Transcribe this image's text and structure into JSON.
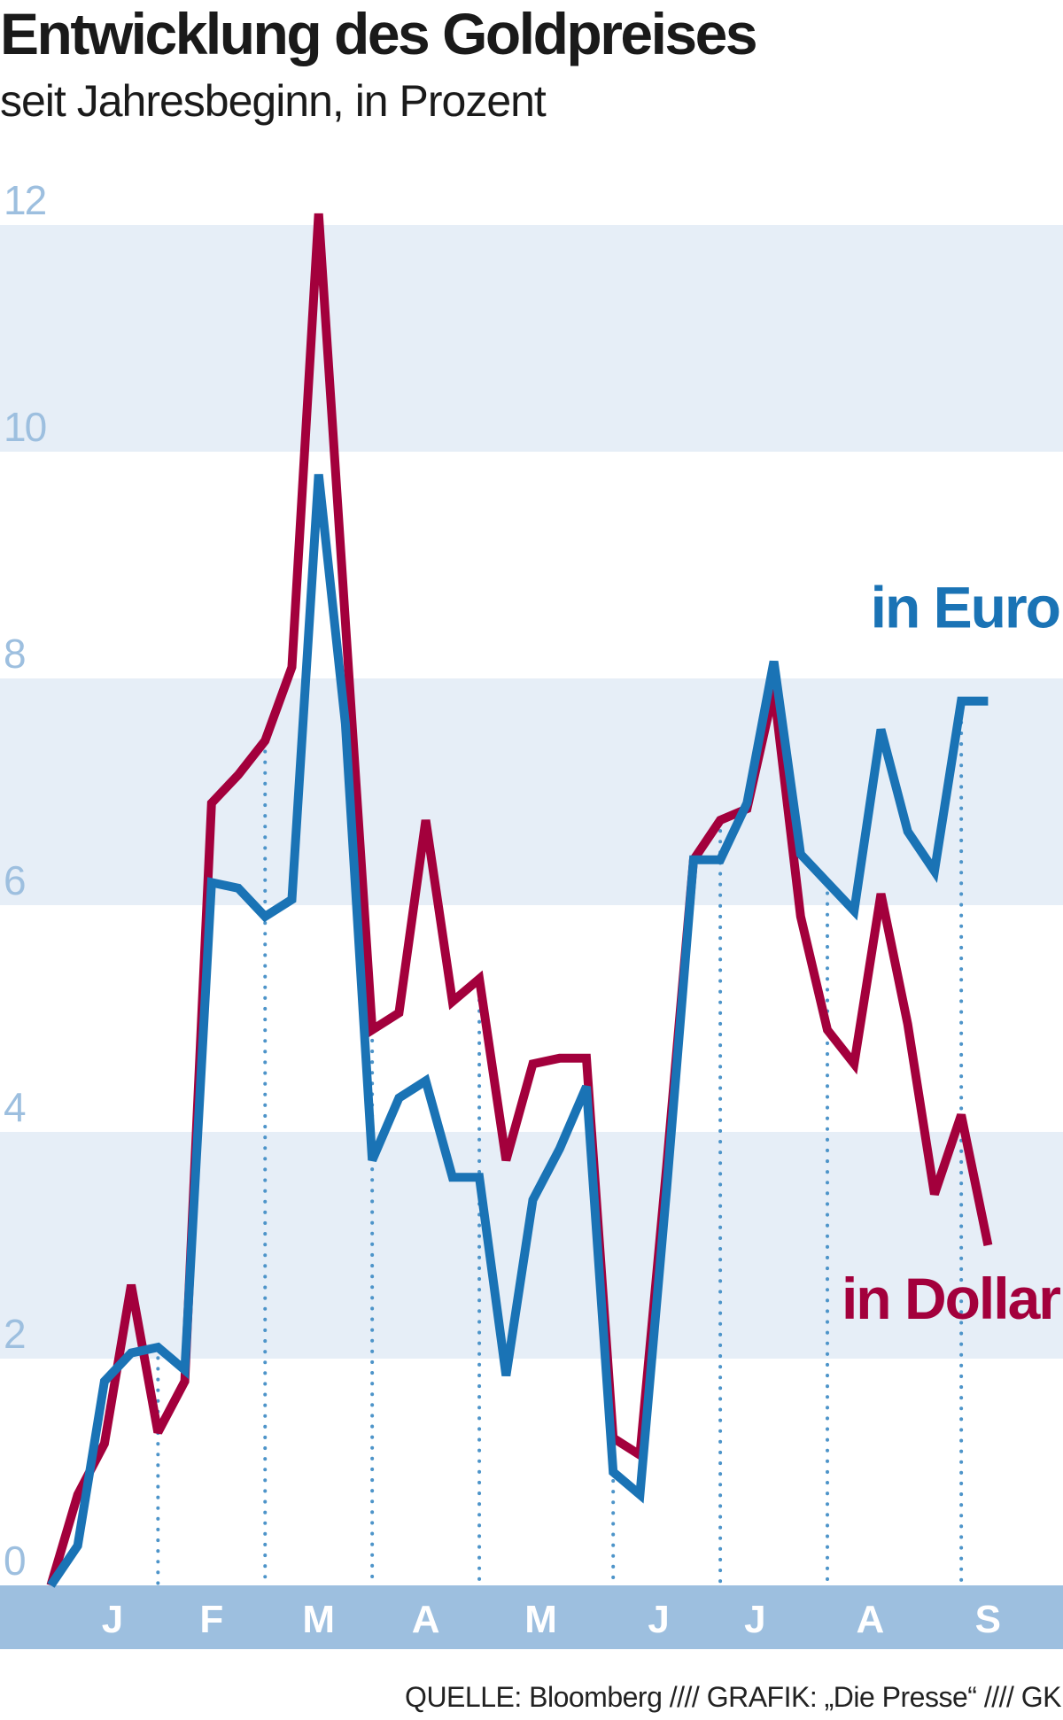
{
  "chart": {
    "title": "Entwicklung des Goldpreises",
    "subtitle": "seit Jahresbeginn, in Prozent",
    "source": "QUELLE:  Bloomberg  ////  GRAFIK: „Die Presse“  ////  GK"
  },
  "colors": {
    "euro": "#1a73b5",
    "dollar": "#a3003c",
    "band": "#e6eef7",
    "axis_bar": "#9dbfdf",
    "tick_text": "#9dbfdf",
    "month_text": "#ffffff",
    "grid_dots": "#4d94c9"
  },
  "chart_data": {
    "type": "line",
    "title": "Entwicklung des Goldpreises",
    "subtitle": "seit Jahresbeginn, in Prozent",
    "xlabel": "",
    "ylabel": "",
    "ylim": [
      0,
      12
    ],
    "yticks": [
      0,
      2,
      4,
      6,
      8,
      10,
      12
    ],
    "month_labels": [
      "J",
      "F",
      "M",
      "A",
      "M",
      "J",
      "J",
      "A",
      "S"
    ],
    "month_label_positions": [
      2.3,
      6.0,
      10.0,
      14.0,
      18.3,
      22.7,
      26.3,
      30.6,
      35.0
    ],
    "week_grid_x": [
      4,
      8,
      12,
      16,
      21,
      25,
      29,
      34
    ],
    "grid": "dotted vertical lines at month boundaries, horizontal bands",
    "xlim": [
      -1.9,
      37.8
    ],
    "x": [
      0,
      1,
      2,
      3,
      4,
      5,
      6,
      7,
      8,
      9,
      10,
      11,
      12,
      13,
      14,
      15,
      16,
      17,
      18,
      19,
      20,
      21,
      22,
      23,
      24,
      25,
      26,
      27,
      28,
      29,
      30,
      31,
      32,
      33,
      34,
      35
    ],
    "series": [
      {
        "name": "in Dollar",
        "key": "dollar",
        "label_position": "bottom-right",
        "values": [
          0.0,
          0.8,
          1.25,
          2.65,
          1.35,
          1.8,
          6.9,
          7.15,
          7.45,
          8.1,
          12.1,
          8.5,
          4.9,
          5.05,
          6.75,
          5.15,
          5.35,
          3.75,
          4.6,
          4.65,
          4.65,
          1.3,
          1.15,
          3.7,
          6.4,
          6.75,
          6.85,
          7.9,
          5.9,
          4.9,
          4.6,
          6.1,
          4.95,
          3.45,
          4.15,
          3.0
        ]
      },
      {
        "name": "in Euro",
        "key": "euro",
        "label_position": "top-right",
        "values": [
          0.0,
          0.35,
          1.8,
          2.05,
          2.1,
          1.9,
          6.2,
          6.15,
          5.9,
          6.05,
          9.8,
          7.6,
          3.75,
          4.3,
          4.45,
          3.6,
          3.6,
          1.85,
          3.4,
          3.85,
          4.4,
          1.0,
          0.8,
          3.5,
          6.4,
          6.4,
          6.9,
          8.15,
          6.45,
          6.2,
          5.95,
          7.55,
          6.65,
          6.3,
          7.8,
          7.8
        ]
      }
    ]
  }
}
